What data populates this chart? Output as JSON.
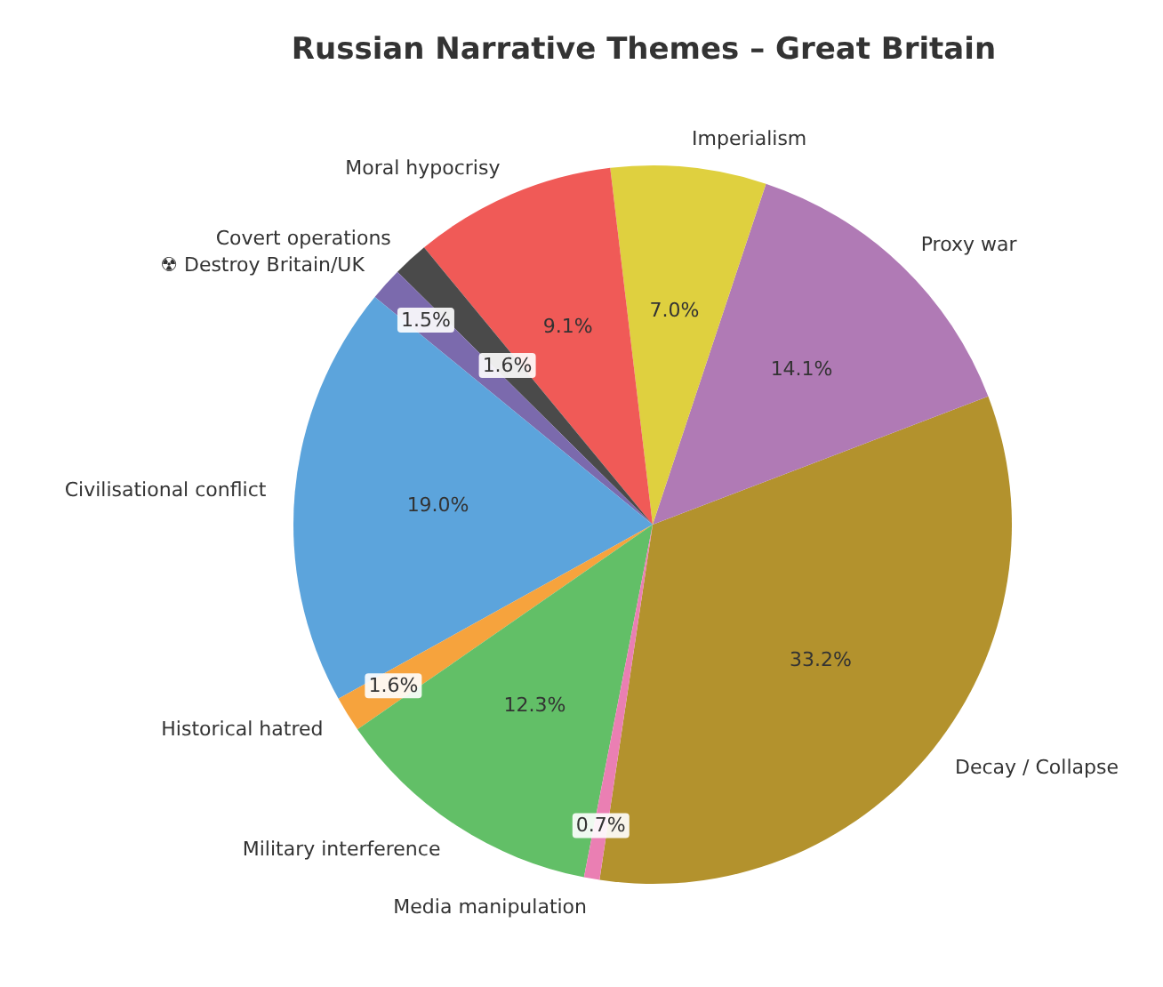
{
  "chart_data": {
    "type": "pie",
    "title": "Russian Narrative Themes – Great Britain",
    "categories": [
      "Decay / Collapse",
      "Proxy war",
      "Imperialism",
      "Moral hypocrisy",
      "Covert operations",
      "☢ Destroy Britain/UK",
      "Civilisational conflict",
      "Historical hatred",
      "Military interference",
      "Media manipulation"
    ],
    "values": [
      33.2,
      14.1,
      7.0,
      9.1,
      1.6,
      1.5,
      19.0,
      1.6,
      12.3,
      0.7
    ],
    "colors": [
      "#b3922d",
      "#b07ab5",
      "#dfd03f",
      "#f05a57",
      "#4a4a4a",
      "#7b6aad",
      "#5ca4dc",
      "#f6a33d",
      "#62bf67",
      "#ea7fb3"
    ],
    "value_labels": [
      "33.2%",
      "14.1%",
      "7.0%",
      "9.1%",
      "1.6%",
      "1.5%",
      "19.0%",
      "1.6%",
      "12.3%",
      "0.7%"
    ]
  }
}
